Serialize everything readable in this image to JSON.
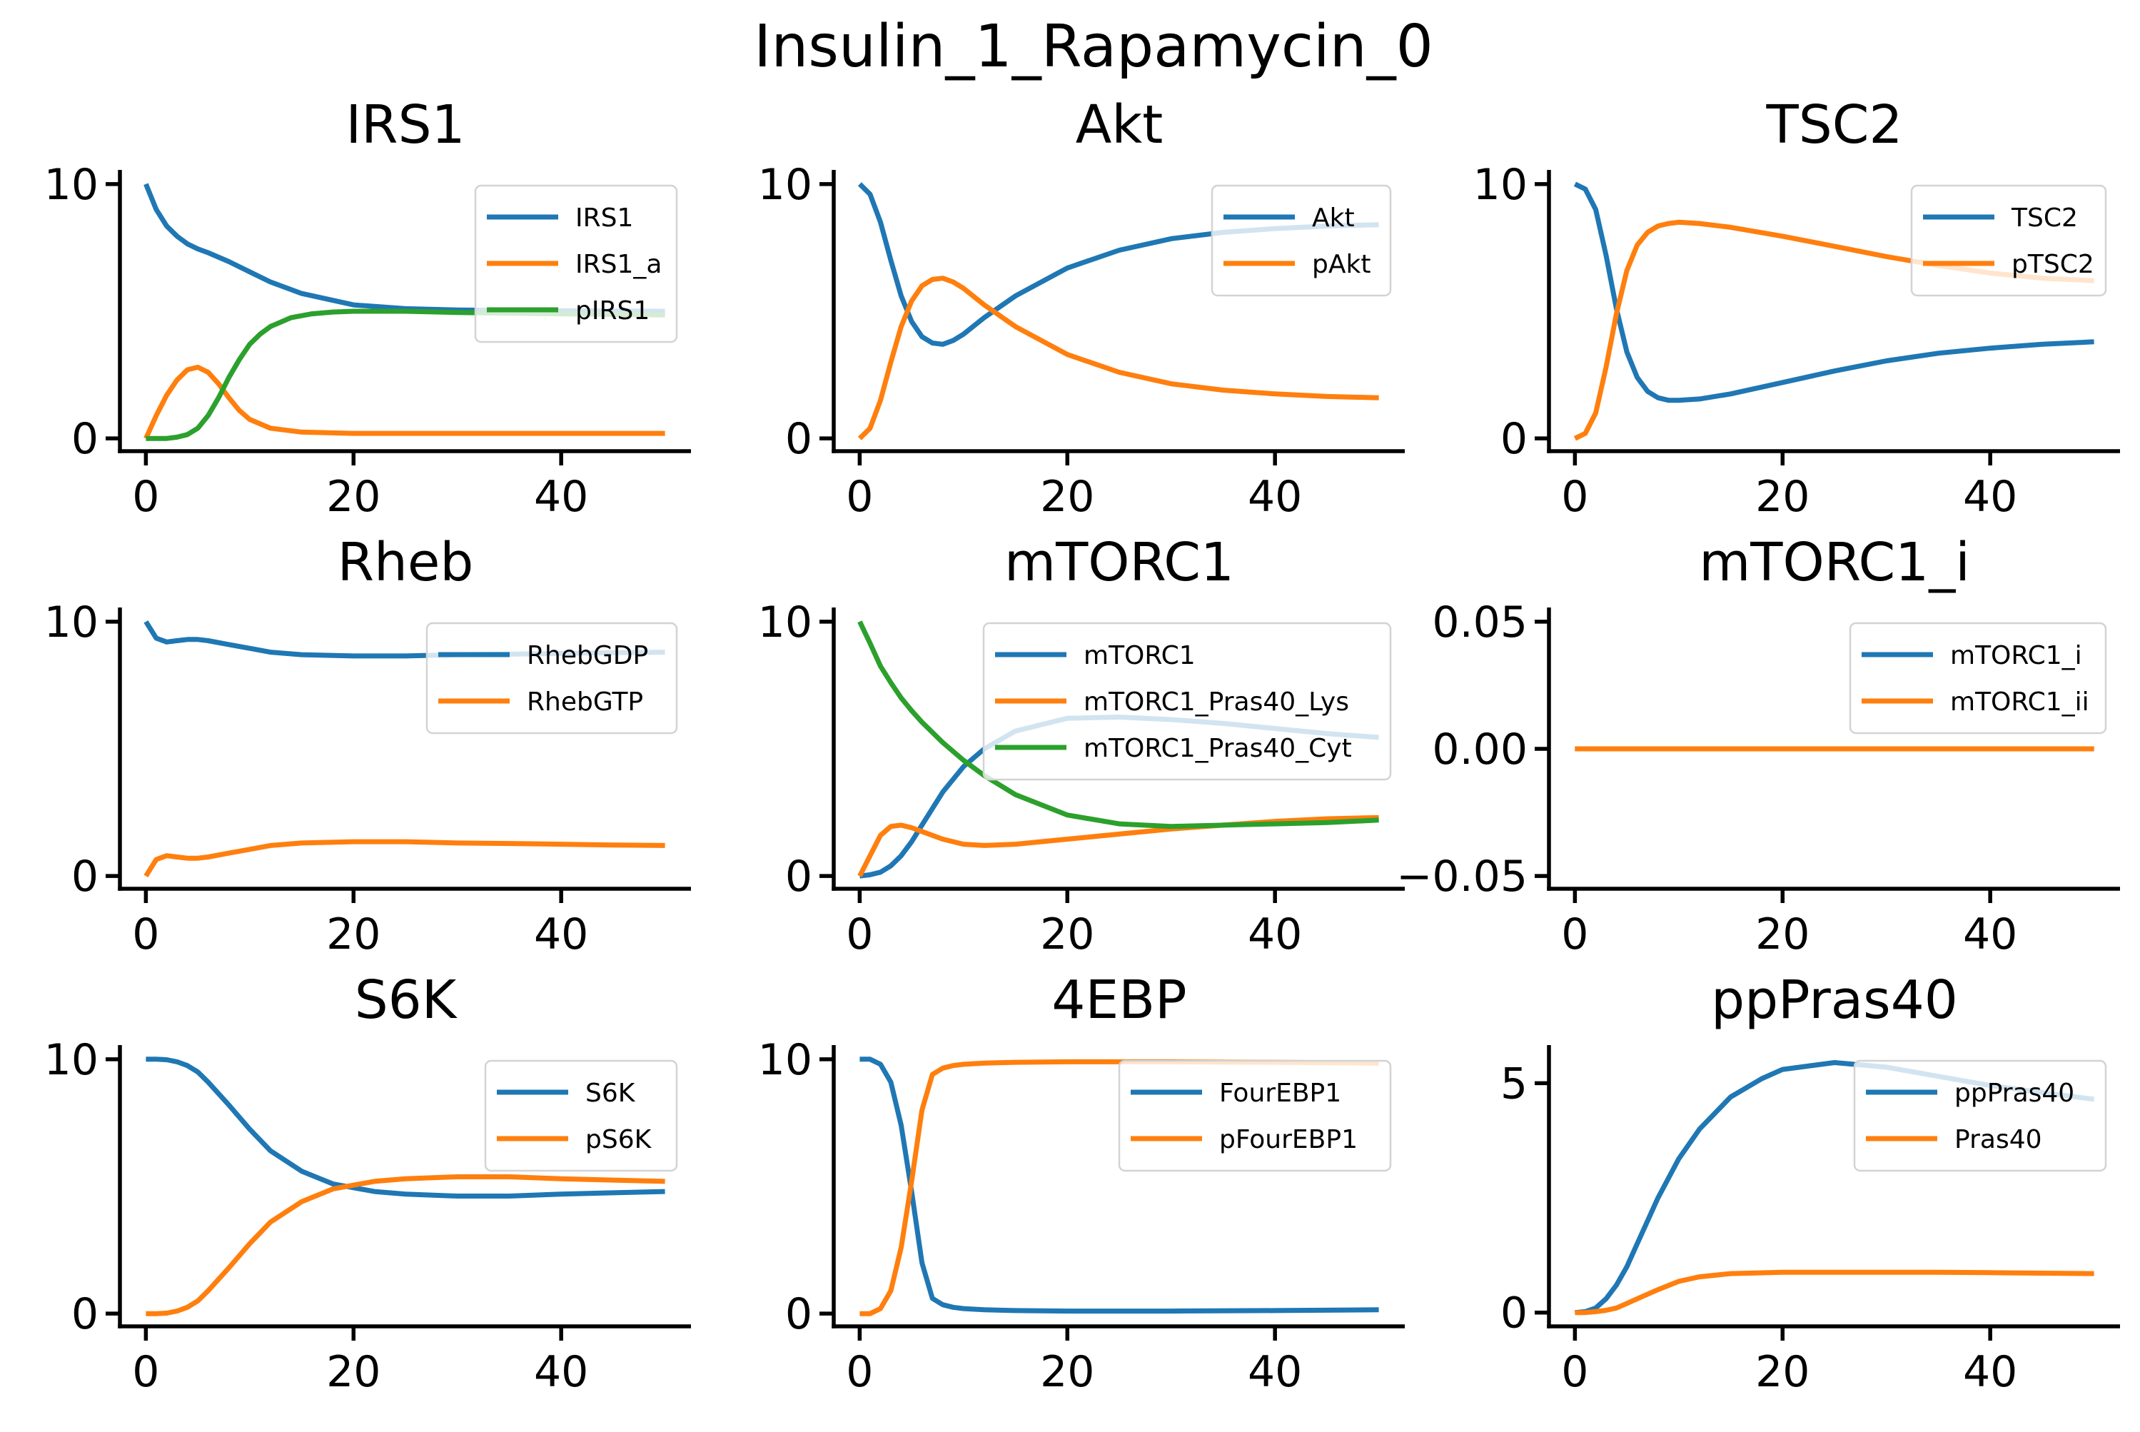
{
  "figure": {
    "title": "Insulin_1_Rapamycin_0"
  },
  "colors": {
    "blue": "#1f77b4",
    "orange": "#ff7f0e",
    "green": "#2ca02c"
  },
  "chart_data": [
    {
      "type": "line",
      "title": "IRS1",
      "xlim": [
        -2.5,
        52.5
      ],
      "ylim": [
        -0.5,
        10.5
      ],
      "xticks": [
        0,
        20,
        40
      ],
      "xtick_labels": [
        "0",
        "20",
        "40"
      ],
      "yticks": [
        0,
        10
      ],
      "ytick_labels": [
        "0",
        "10"
      ],
      "legend": "upper-right",
      "series": [
        {
          "name": "IRS1",
          "color": "#1f77b4",
          "x": [
            0,
            1,
            2,
            3,
            4,
            5,
            6,
            8,
            10,
            12,
            15,
            20,
            25,
            30,
            35,
            40,
            45,
            50
          ],
          "y": [
            10.0,
            9.0,
            8.35,
            7.95,
            7.65,
            7.45,
            7.3,
            6.95,
            6.55,
            6.15,
            5.7,
            5.25,
            5.1,
            5.05,
            5.03,
            5.02,
            5.01,
            5.0
          ]
        },
        {
          "name": "IRS1_a",
          "color": "#ff7f0e",
          "x": [
            0,
            1,
            2,
            3,
            4,
            5,
            6,
            7,
            8,
            9,
            10,
            12,
            15,
            20,
            30,
            40,
            50
          ],
          "y": [
            0.0,
            0.9,
            1.7,
            2.3,
            2.7,
            2.8,
            2.6,
            2.15,
            1.6,
            1.1,
            0.75,
            0.4,
            0.25,
            0.2,
            0.2,
            0.2,
            0.2
          ]
        },
        {
          "name": "pIRS1",
          "color": "#2ca02c",
          "x": [
            0,
            1,
            2,
            3,
            4,
            5,
            6,
            7,
            8,
            9,
            10,
            11,
            12,
            14,
            16,
            18,
            20,
            25,
            30,
            40,
            50
          ],
          "y": [
            0.0,
            0.0,
            0.0,
            0.05,
            0.15,
            0.4,
            0.9,
            1.6,
            2.4,
            3.1,
            3.7,
            4.1,
            4.4,
            4.75,
            4.9,
            4.97,
            5.0,
            5.0,
            4.95,
            4.9,
            4.85
          ]
        }
      ]
    },
    {
      "type": "line",
      "title": "Akt",
      "xlim": [
        -2.5,
        52.5
      ],
      "ylim": [
        -0.5,
        10.5
      ],
      "xticks": [
        0,
        20,
        40
      ],
      "xtick_labels": [
        "0",
        "20",
        "40"
      ],
      "yticks": [
        0,
        10
      ],
      "ytick_labels": [
        "0",
        "10"
      ],
      "legend": "upper-right",
      "series": [
        {
          "name": "Akt",
          "color": "#1f77b4",
          "x": [
            0,
            1,
            2,
            3,
            4,
            5,
            6,
            7,
            8,
            9,
            10,
            12,
            15,
            20,
            25,
            30,
            35,
            40,
            45,
            50
          ],
          "y": [
            10.0,
            9.6,
            8.5,
            7.0,
            5.6,
            4.6,
            4.0,
            3.75,
            3.7,
            3.85,
            4.1,
            4.75,
            5.6,
            6.7,
            7.4,
            7.85,
            8.1,
            8.25,
            8.35,
            8.4
          ]
        },
        {
          "name": "pAkt",
          "color": "#ff7f0e",
          "x": [
            0,
            1,
            2,
            3,
            4,
            5,
            6,
            7,
            8,
            9,
            10,
            12,
            15,
            20,
            25,
            30,
            35,
            40,
            45,
            50
          ],
          "y": [
            0.0,
            0.4,
            1.5,
            3.0,
            4.4,
            5.4,
            6.0,
            6.25,
            6.3,
            6.15,
            5.9,
            5.25,
            4.4,
            3.3,
            2.6,
            2.15,
            1.9,
            1.75,
            1.65,
            1.6
          ]
        }
      ]
    },
    {
      "type": "line",
      "title": "TSC2",
      "xlim": [
        -2.5,
        52.5
      ],
      "ylim": [
        -0.5,
        10.5
      ],
      "xticks": [
        0,
        20,
        40
      ],
      "xtick_labels": [
        "0",
        "20",
        "40"
      ],
      "yticks": [
        0,
        10
      ],
      "ytick_labels": [
        "0",
        "10"
      ],
      "legend": "upper-right",
      "series": [
        {
          "name": "TSC2",
          "color": "#1f77b4",
          "x": [
            0,
            1,
            2,
            3,
            4,
            5,
            6,
            7,
            8,
            9,
            10,
            12,
            15,
            20,
            25,
            30,
            35,
            40,
            45,
            50
          ],
          "y": [
            10.0,
            9.8,
            9.0,
            7.2,
            5.1,
            3.4,
            2.4,
            1.85,
            1.6,
            1.5,
            1.5,
            1.55,
            1.75,
            2.2,
            2.65,
            3.05,
            3.35,
            3.55,
            3.7,
            3.8
          ]
        },
        {
          "name": "pTSC2",
          "color": "#ff7f0e",
          "x": [
            0,
            1,
            2,
            3,
            4,
            5,
            6,
            7,
            8,
            9,
            10,
            12,
            15,
            20,
            25,
            30,
            35,
            40,
            45,
            50
          ],
          "y": [
            0.0,
            0.2,
            1.0,
            2.8,
            4.9,
            6.6,
            7.6,
            8.1,
            8.35,
            8.45,
            8.5,
            8.45,
            8.3,
            7.95,
            7.55,
            7.15,
            6.8,
            6.5,
            6.3,
            6.2
          ]
        }
      ]
    },
    {
      "type": "line",
      "title": "Rheb",
      "xlim": [
        -2.5,
        52.5
      ],
      "ylim": [
        -0.5,
        10.5
      ],
      "xticks": [
        0,
        20,
        40
      ],
      "xtick_labels": [
        "0",
        "20",
        "40"
      ],
      "yticks": [
        0,
        10
      ],
      "ytick_labels": [
        "0",
        "10"
      ],
      "legend": "upper-right",
      "series": [
        {
          "name": "RhebGDP",
          "color": "#1f77b4",
          "x": [
            0,
            1,
            2,
            3,
            4,
            5,
            6,
            8,
            10,
            12,
            15,
            20,
            25,
            30,
            35,
            40,
            45,
            50
          ],
          "y": [
            10.0,
            9.35,
            9.2,
            9.25,
            9.3,
            9.3,
            9.25,
            9.1,
            8.95,
            8.8,
            8.7,
            8.65,
            8.65,
            8.7,
            8.72,
            8.75,
            8.78,
            8.8
          ]
        },
        {
          "name": "RhebGTP",
          "color": "#ff7f0e",
          "x": [
            0,
            1,
            2,
            3,
            4,
            5,
            6,
            8,
            10,
            12,
            15,
            20,
            25,
            30,
            35,
            40,
            45,
            50
          ],
          "y": [
            0.0,
            0.65,
            0.8,
            0.75,
            0.7,
            0.7,
            0.75,
            0.9,
            1.05,
            1.2,
            1.3,
            1.35,
            1.35,
            1.3,
            1.28,
            1.25,
            1.22,
            1.2
          ]
        }
      ]
    },
    {
      "type": "line",
      "title": "mTORC1",
      "xlim": [
        -2.5,
        52.5
      ],
      "ylim": [
        -0.5,
        10.5
      ],
      "xticks": [
        0,
        20,
        40
      ],
      "xtick_labels": [
        "0",
        "20",
        "40"
      ],
      "yticks": [
        0,
        10
      ],
      "ytick_labels": [
        "0",
        "10"
      ],
      "legend": "upper-right",
      "series": [
        {
          "name": "mTORC1",
          "color": "#1f77b4",
          "x": [
            0,
            1,
            2,
            3,
            4,
            5,
            6,
            8,
            10,
            12,
            15,
            20,
            25,
            30,
            35,
            40,
            45,
            50
          ],
          "y": [
            0.0,
            0.05,
            0.15,
            0.4,
            0.8,
            1.35,
            2.0,
            3.3,
            4.3,
            5.0,
            5.7,
            6.2,
            6.25,
            6.15,
            6.0,
            5.8,
            5.6,
            5.45
          ]
        },
        {
          "name": "mTORC1_Pras40_Lys",
          "color": "#ff7f0e",
          "x": [
            0,
            1,
            2,
            3,
            4,
            5,
            6,
            8,
            10,
            12,
            15,
            20,
            25,
            30,
            35,
            40,
            45,
            50
          ],
          "y": [
            0.0,
            0.8,
            1.6,
            1.95,
            2.0,
            1.9,
            1.75,
            1.45,
            1.25,
            1.2,
            1.25,
            1.45,
            1.65,
            1.85,
            2.0,
            2.15,
            2.25,
            2.3
          ]
        },
        {
          "name": "mTORC1_Pras40_Cyt",
          "color": "#2ca02c",
          "x": [
            0,
            1,
            2,
            3,
            4,
            5,
            6,
            8,
            10,
            12,
            15,
            20,
            25,
            30,
            35,
            40,
            45,
            50
          ],
          "y": [
            10.0,
            9.15,
            8.25,
            7.6,
            7.0,
            6.5,
            6.05,
            5.25,
            4.55,
            3.95,
            3.2,
            2.4,
            2.05,
            1.95,
            2.0,
            2.05,
            2.1,
            2.2
          ]
        }
      ]
    },
    {
      "type": "line",
      "title": "mTORC1_i",
      "xlim": [
        -2.5,
        52.5
      ],
      "ylim": [
        -0.055,
        0.055
      ],
      "xticks": [
        0,
        20,
        40
      ],
      "xtick_labels": [
        "0",
        "20",
        "40"
      ],
      "yticks": [
        -0.05,
        0.0,
        0.05
      ],
      "ytick_labels": [
        "−0.05",
        "0.00",
        "0.05"
      ],
      "legend": "upper-right",
      "series": [
        {
          "name": "mTORC1_i",
          "color": "#1f77b4",
          "x": [
            0,
            50
          ],
          "y": [
            0.0,
            0.0
          ]
        },
        {
          "name": "mTORC1_ii",
          "color": "#ff7f0e",
          "x": [
            0,
            50
          ],
          "y": [
            0.0,
            0.0
          ]
        }
      ]
    },
    {
      "type": "line",
      "title": "S6K",
      "xlim": [
        -2.5,
        52.5
      ],
      "ylim": [
        -0.5,
        10.5
      ],
      "xticks": [
        0,
        20,
        40
      ],
      "xtick_labels": [
        "0",
        "20",
        "40"
      ],
      "yticks": [
        0,
        10
      ],
      "ytick_labels": [
        "0",
        "10"
      ],
      "legend": "upper-right",
      "series": [
        {
          "name": "S6K",
          "color": "#1f77b4",
          "x": [
            0,
            1,
            2,
            3,
            4,
            5,
            6,
            8,
            10,
            12,
            15,
            18,
            20,
            22,
            25,
            30,
            35,
            40,
            45,
            50
          ],
          "y": [
            10.0,
            10.0,
            9.98,
            9.9,
            9.75,
            9.5,
            9.1,
            8.2,
            7.25,
            6.4,
            5.6,
            5.1,
            4.95,
            4.8,
            4.7,
            4.62,
            4.62,
            4.7,
            4.75,
            4.8
          ]
        },
        {
          "name": "pS6K",
          "color": "#ff7f0e",
          "x": [
            0,
            1,
            2,
            3,
            4,
            5,
            6,
            8,
            10,
            12,
            15,
            18,
            20,
            22,
            25,
            30,
            35,
            40,
            45,
            50
          ],
          "y": [
            0.0,
            0.0,
            0.02,
            0.1,
            0.25,
            0.5,
            0.9,
            1.8,
            2.75,
            3.6,
            4.4,
            4.9,
            5.05,
            5.2,
            5.3,
            5.38,
            5.38,
            5.3,
            5.25,
            5.2
          ]
        }
      ]
    },
    {
      "type": "line",
      "title": "4EBP",
      "xlim": [
        -2.5,
        52.5
      ],
      "ylim": [
        -0.5,
        10.5
      ],
      "xticks": [
        0,
        20,
        40
      ],
      "xtick_labels": [
        "0",
        "20",
        "40"
      ],
      "yticks": [
        0,
        10
      ],
      "ytick_labels": [
        "0",
        "10"
      ],
      "legend": "upper-right",
      "series": [
        {
          "name": "FourEBP1",
          "color": "#1f77b4",
          "x": [
            0,
            1,
            2,
            3,
            4,
            5,
            6,
            7,
            8,
            9,
            10,
            12,
            15,
            20,
            30,
            40,
            50
          ],
          "y": [
            10.0,
            10.0,
            9.8,
            9.1,
            7.4,
            4.8,
            2.0,
            0.6,
            0.35,
            0.25,
            0.2,
            0.15,
            0.12,
            0.1,
            0.1,
            0.12,
            0.15
          ]
        },
        {
          "name": "pFourEBP1",
          "color": "#ff7f0e",
          "x": [
            0,
            1,
            2,
            3,
            4,
            5,
            6,
            7,
            8,
            9,
            10,
            12,
            15,
            20,
            30,
            40,
            50
          ],
          "y": [
            0.0,
            0.0,
            0.2,
            0.9,
            2.6,
            5.2,
            8.0,
            9.4,
            9.65,
            9.75,
            9.8,
            9.85,
            9.88,
            9.9,
            9.9,
            9.88,
            9.85
          ]
        }
      ]
    },
    {
      "type": "line",
      "title": "ppPras40",
      "xlim": [
        -2.5,
        52.5
      ],
      "ylim": [
        -0.3,
        5.8
      ],
      "xticks": [
        0,
        20,
        40
      ],
      "xtick_labels": [
        "0",
        "20",
        "40"
      ],
      "yticks": [
        0,
        5
      ],
      "ytick_labels": [
        "0",
        "5"
      ],
      "legend": "upper-right",
      "series": [
        {
          "name": "ppPras40",
          "color": "#1f77b4",
          "x": [
            0,
            1,
            2,
            3,
            4,
            5,
            6,
            8,
            10,
            12,
            15,
            18,
            20,
            25,
            30,
            35,
            40,
            45,
            50
          ],
          "y": [
            0.0,
            0.02,
            0.1,
            0.3,
            0.6,
            1.0,
            1.5,
            2.5,
            3.35,
            4.0,
            4.7,
            5.1,
            5.3,
            5.45,
            5.35,
            5.15,
            4.95,
            4.8,
            4.65
          ]
        },
        {
          "name": "Pras40",
          "color": "#ff7f0e",
          "x": [
            0,
            1,
            2,
            3,
            4,
            5,
            6,
            8,
            10,
            12,
            15,
            20,
            25,
            30,
            35,
            40,
            45,
            50
          ],
          "y": [
            0.0,
            0.0,
            0.02,
            0.05,
            0.1,
            0.2,
            0.3,
            0.5,
            0.68,
            0.78,
            0.85,
            0.88,
            0.88,
            0.88,
            0.88,
            0.87,
            0.86,
            0.85
          ]
        }
      ]
    }
  ]
}
